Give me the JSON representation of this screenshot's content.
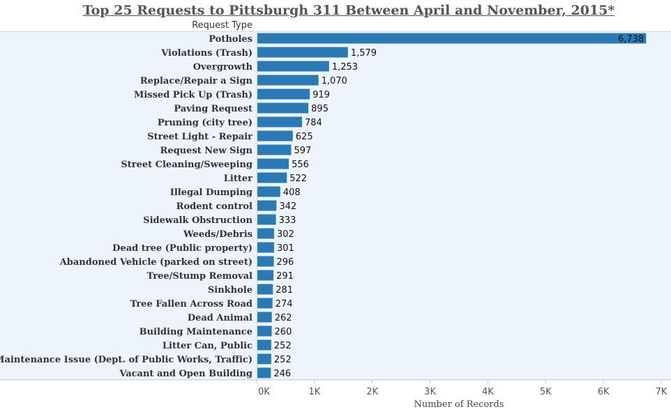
{
  "chart_data": {
    "type": "bar",
    "orientation": "horizontal",
    "title": "Top 25 Requests to Pittsburgh 311 Between April and November, 2015*",
    "row_header": "Request Type",
    "xlabel": "Number of Records",
    "ylabel": "",
    "xlim": [
      0,
      7000
    ],
    "x_ticks": [
      "0K",
      "1K",
      "2K",
      "3K",
      "4K",
      "5K",
      "6K",
      "7K"
    ],
    "bar_color": "#2b7ab5",
    "background_color": "#eef4fb",
    "categories": [
      "Potholes",
      "Violations (Trash)",
      "Overgrowth",
      "Replace/Repair a Sign",
      "Missed Pick Up (Trash)",
      "Paving Request",
      "Pruning (city tree)",
      "Street Light - Repair",
      "Request New Sign",
      "Street Cleaning/Sweeping",
      "Litter",
      "Illegal Dumping",
      "Rodent control",
      "Sidewalk Obstruction",
      "Weeds/Debris",
      "Dead tree (Public property)",
      "Abandoned Vehicle (parked on street)",
      "Tree/Stump Removal",
      "Sinkhole",
      "Tree Fallen Across Road",
      "Dead Animal",
      "Building Maintenance",
      "Litter Can, Public",
      "Maintenance Issue (Dept. of Public Works, Traffic)",
      "Vacant and Open Building"
    ],
    "values": [
      6738,
      1579,
      1253,
      1070,
      919,
      895,
      784,
      625,
      597,
      556,
      522,
      408,
      342,
      333,
      302,
      301,
      296,
      291,
      281,
      274,
      262,
      260,
      252,
      252,
      246
    ],
    "value_labels": [
      "6,738",
      "1,579",
      "1,253",
      "1,070",
      "919",
      "895",
      "784",
      "625",
      "597",
      "556",
      "522",
      "408",
      "342",
      "333",
      "302",
      "301",
      "296",
      "291",
      "281",
      "274",
      "262",
      "260",
      "252",
      "252",
      "246"
    ]
  }
}
